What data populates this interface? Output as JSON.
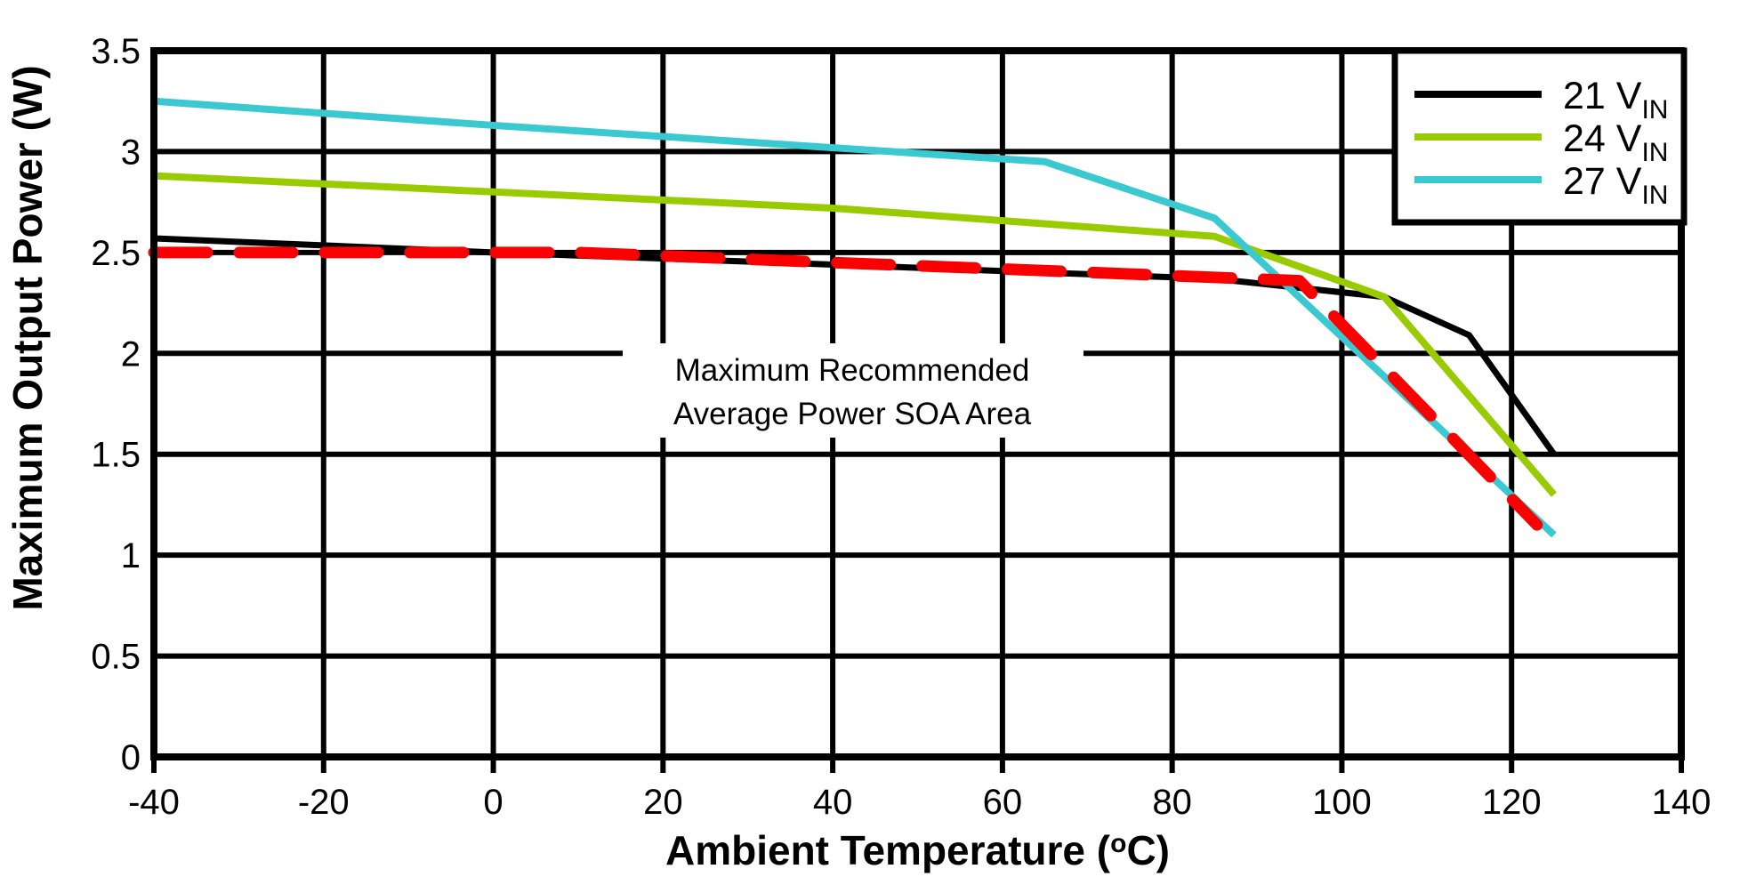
{
  "colors": {
    "black": "#000000",
    "green": "#99cc00",
    "cyan": "#3ac9d0",
    "red": "#fa0000",
    "grid": "#000000",
    "background": "#ffffff"
  },
  "chart_data": {
    "type": "line",
    "title": "",
    "xlabel": {
      "pre": "Ambient Temperature (",
      "sup": "o",
      "post": "C)"
    },
    "ylabel": "Maximum Output Power (W)",
    "xlim": [
      -40,
      140
    ],
    "ylim": [
      0,
      3.5
    ],
    "xticks": [
      -40,
      -20,
      0,
      20,
      40,
      60,
      80,
      100,
      120,
      140
    ],
    "yticks": [
      0,
      0.5,
      1,
      1.5,
      2,
      2.5,
      3,
      3.5
    ],
    "ytick_labels": [
      "0",
      "0.5",
      "1",
      "1.5",
      "2",
      "2.5",
      "3",
      "3.5"
    ],
    "grid": true,
    "legend": {
      "position": "top-right",
      "entries": [
        {
          "label": "21 V",
          "sub": "IN",
          "color_key": "black"
        },
        {
          "label": "24 V",
          "sub": "IN",
          "color_key": "green"
        },
        {
          "label": "27 V",
          "sub": "IN",
          "color_key": "cyan"
        }
      ]
    },
    "annotation": {
      "lines": [
        "Maximum Recommended",
        "Average Power SOA Area"
      ]
    },
    "series": [
      {
        "id": "21vin",
        "name": "21 VIN",
        "color_key": "black",
        "style": "solid",
        "width": 7,
        "points": [
          [
            -40,
            2.57
          ],
          [
            0,
            2.5
          ],
          [
            40,
            2.44
          ],
          [
            65,
            2.4
          ],
          [
            85,
            2.37
          ],
          [
            105,
            2.28
          ],
          [
            115,
            2.09
          ],
          [
            125,
            1.5
          ]
        ]
      },
      {
        "id": "24vin",
        "name": "24 VIN",
        "color_key": "green",
        "style": "solid",
        "width": 8,
        "points": [
          [
            -40,
            2.88
          ],
          [
            0,
            2.8
          ],
          [
            40,
            2.72
          ],
          [
            85,
            2.58
          ],
          [
            105,
            2.28
          ],
          [
            125,
            1.3
          ]
        ]
      },
      {
        "id": "27vin",
        "name": "27 VIN",
        "color_key": "cyan",
        "style": "solid",
        "width": 8,
        "points": [
          [
            -40,
            3.25
          ],
          [
            0,
            3.13
          ],
          [
            65,
            2.95
          ],
          [
            85,
            2.67
          ],
          [
            125,
            1.1
          ]
        ]
      },
      {
        "id": "soa",
        "name": "Maximum Recommended Average Power SOA",
        "color_key": "red",
        "style": "dashed",
        "width": 13,
        "points": [
          [
            -40,
            2.5
          ],
          [
            10,
            2.5
          ],
          [
            40,
            2.45
          ],
          [
            65,
            2.41
          ],
          [
            95,
            2.36
          ],
          [
            123,
            1.15
          ]
        ]
      }
    ]
  }
}
